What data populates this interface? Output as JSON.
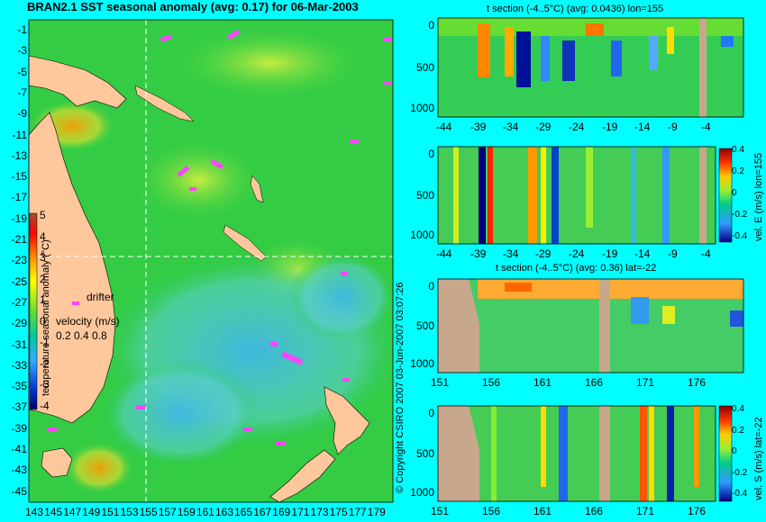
{
  "map": {
    "title": "BRAN2.1 SST seasonal anomaly (avg: 0.17) for 06-Mar-2003",
    "lat_ticks": [
      "-1",
      "-3",
      "-5",
      "-7",
      "-9",
      "-11",
      "-13",
      "-15",
      "-17",
      "-19",
      "-21",
      "-23",
      "-25",
      "-27",
      "-29",
      "-31",
      "-33",
      "-35",
      "-37",
      "-39",
      "-41",
      "-43",
      "-45"
    ],
    "lon_ticks": [
      "143",
      "145",
      "147",
      "149",
      "151",
      "153",
      "155",
      "157",
      "159",
      "161",
      "163",
      "165",
      "167",
      "169",
      "171",
      "173",
      "175",
      "177",
      "179"
    ],
    "colorbar_ticks": [
      "5",
      "4",
      "3",
      "2",
      "1",
      "0",
      "-1",
      "-2",
      "-3",
      "-4"
    ],
    "colorbar_label": "temperature seasonal anomaly (°C)",
    "drifter_label": "drifter",
    "velocity_label": "velocity (m/s)",
    "velocity_ticks": "0.2 0.4 0.8",
    "copyright": "© Copyright CSIRO 2007  03-Jun-2007 03:07:26"
  },
  "panels": [
    {
      "title": "t section (-4..5°C) (avg: 0.0436) lon=155",
      "x_ticks": [
        "-44",
        "-39",
        "-34",
        "-29",
        "-24",
        "-19",
        "-14",
        "-9",
        "-4"
      ],
      "y_ticks": [
        "0",
        "500",
        "1000"
      ],
      "colorbar": ""
    },
    {
      "title": "",
      "x_ticks": [
        "-44",
        "-39",
        "-34",
        "-29",
        "-24",
        "-19",
        "-14",
        "-9",
        "-4"
      ],
      "y_ticks": [
        "0",
        "500",
        "1000"
      ],
      "colorbar": "vel. E (m/s) lon=155",
      "cb_ticks": [
        "0.4",
        "0.2",
        "0",
        "-0.2",
        "-0.4"
      ]
    },
    {
      "title": "t section (-4..5°C) (avg: 0.36) lat=-22",
      "x_ticks": [
        "151",
        "156",
        "161",
        "166",
        "171",
        "176"
      ],
      "y_ticks": [
        "0",
        "500",
        "1000"
      ],
      "colorbar": ""
    },
    {
      "title": "",
      "x_ticks": [
        "151",
        "156",
        "161",
        "166",
        "171",
        "176"
      ],
      "y_ticks": [
        "0",
        "500",
        "1000"
      ],
      "colorbar": "vel. S (m/s) lat=-22",
      "cb_ticks": [
        "0.4",
        "0.2",
        "0",
        "-0.2",
        "-0.4"
      ]
    }
  ],
  "chart_data": {
    "type": "heatmap",
    "map_lon_range": [
      142,
      180
    ],
    "map_lat_range": [
      -45,
      0
    ],
    "cursor": {
      "lon": 155,
      "lat": -22
    },
    "sections": [
      {
        "name": "t section lon=155",
        "x_range": [
          -45,
          0
        ],
        "depth_range": [
          0,
          1050
        ]
      },
      {
        "name": "vel. E lon=155",
        "x_range": [
          -45,
          0
        ],
        "depth_range": [
          0,
          1050
        ]
      },
      {
        "name": "t section lat=-22",
        "x_range": [
          150,
          180
        ],
        "depth_range": [
          0,
          1050
        ]
      },
      {
        "name": "vel. S lat=-22",
        "x_range": [
          150,
          180
        ],
        "depth_range": [
          0,
          1050
        ]
      }
    ],
    "colors": {
      "background": "#00ffff",
      "land": "#c8a88c",
      "map_land": "#ffc89c",
      "ocean_base": "#22cc44"
    }
  }
}
